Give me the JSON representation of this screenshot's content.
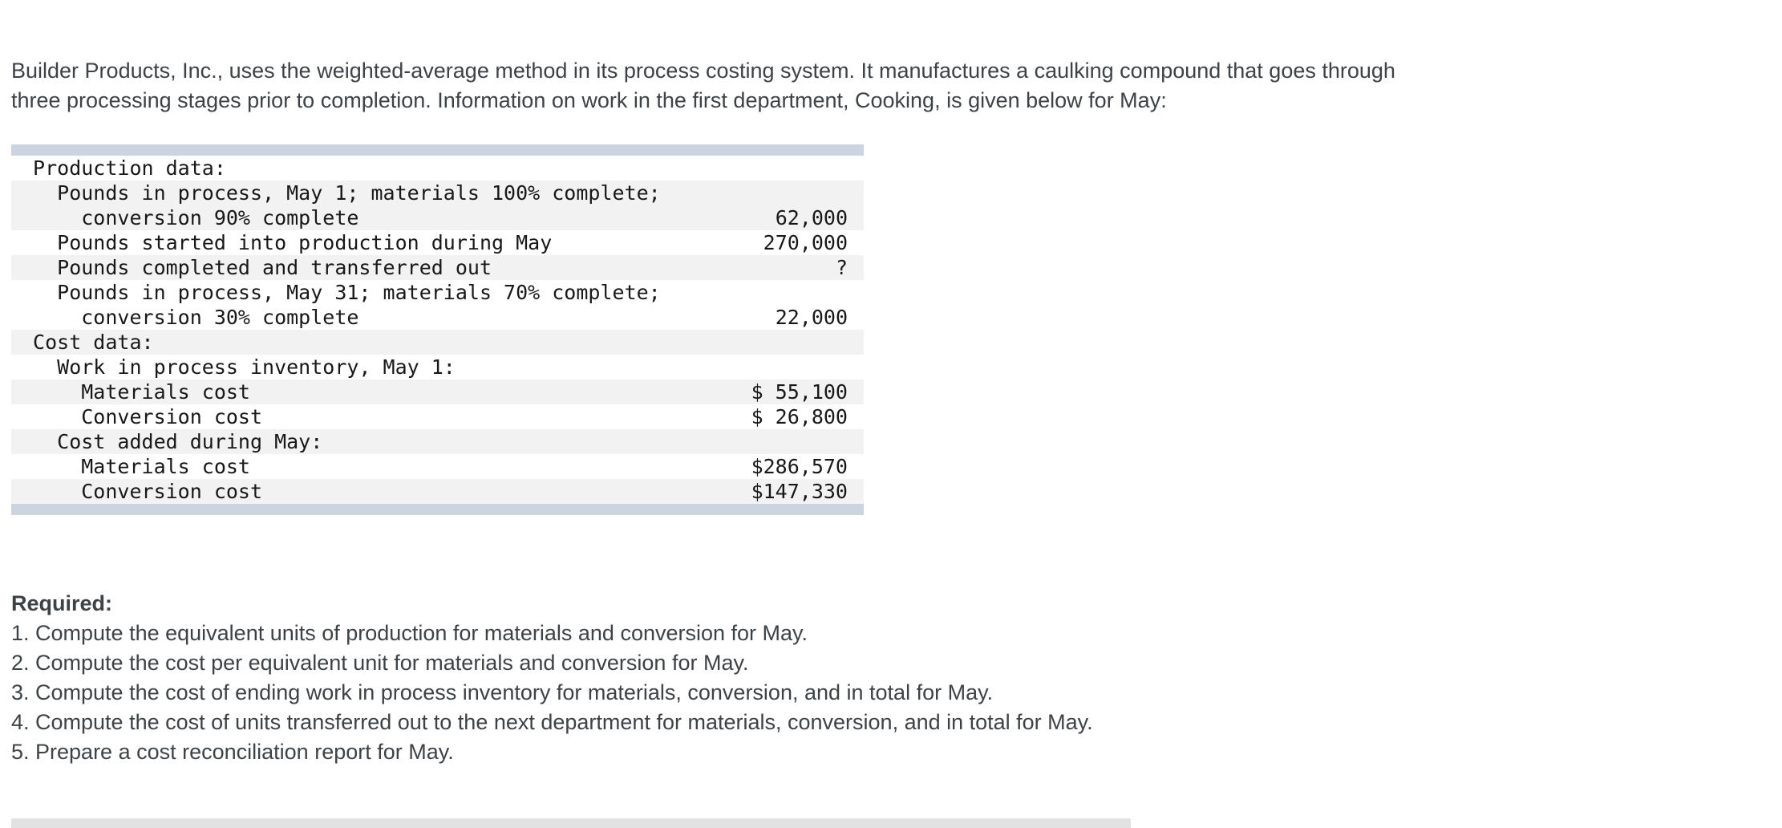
{
  "colors": {
    "bar": "#ccd4e0",
    "stripe": "#f2f2f2",
    "text": "#3d4247",
    "mono_text": "#17181a",
    "divider": "#e2e2e2"
  },
  "intro": "Builder Products, Inc., uses the weighted-average method in its process costing system. It manufactures a caulking compound that goes through three processing stages prior to completion. Information on work in the first department, Cooking, is given below for May:",
  "table": {
    "lines": [
      {
        "text": " Production data:",
        "value": ""
      },
      {
        "text": "   Pounds in process, May 1; materials 100% complete;",
        "value": ""
      },
      {
        "text": "     conversion 90% complete",
        "value": "62,000"
      },
      {
        "text": "   Pounds started into production during May",
        "value": "270,000"
      },
      {
        "text": "   Pounds completed and transferred out",
        "value": "?"
      },
      {
        "text": "   Pounds in process, May 31; materials 70% complete;",
        "value": ""
      },
      {
        "text": "     conversion 30% complete",
        "value": "22,000"
      },
      {
        "text": " Cost data:",
        "value": ""
      },
      {
        "text": "   Work in process inventory, May 1:",
        "value": ""
      },
      {
        "text": "     Materials cost",
        "value": "$ 55,100"
      },
      {
        "text": "     Conversion cost",
        "value": "$ 26,800"
      },
      {
        "text": "   Cost added during May:",
        "value": ""
      },
      {
        "text": "     Materials cost",
        "value": "$286,570"
      },
      {
        "text": "     Conversion cost",
        "value": "$147,330"
      }
    ]
  },
  "required": {
    "heading": "Required:",
    "items": [
      "1. Compute the equivalent units of production for materials and conversion for May.",
      "2. Compute the cost per equivalent unit for materials and conversion for May.",
      "3. Compute the cost of ending work in process inventory for materials, conversion, and in total for May.",
      "4. Compute the cost of units transferred out to the next department for materials, conversion, and in total for May.",
      "5. Prepare a cost reconciliation report for May."
    ]
  }
}
